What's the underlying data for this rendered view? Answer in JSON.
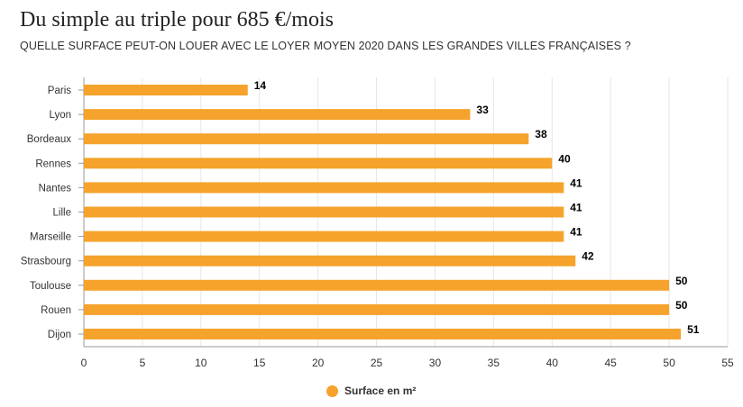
{
  "header": {
    "title": "Du simple au triple pour 685 €/mois",
    "subtitle": "QUELLE SURFACE PEUT-ON LOUER AVEC LE LOYER MOYEN 2020 DANS LES GRANDES VILLES FRANÇAISES ?"
  },
  "colors": {
    "bar": "#f5a32c",
    "grid": "#e6e6e6",
    "axis": "#999999",
    "label": "#333333",
    "value_label": "#000000"
  },
  "chart_data": {
    "type": "bar",
    "orientation": "horizontal",
    "categories": [
      "Paris",
      "Lyon",
      "Bordeaux",
      "Rennes",
      "Nantes",
      "Lille",
      "Marseille",
      "Strasbourg",
      "Toulouse",
      "Rouen",
      "Dijon"
    ],
    "series": [
      {
        "name": "Surface en m²",
        "values": [
          14,
          33,
          38,
          40,
          41,
          41,
          41,
          42,
          50,
          50,
          51
        ]
      }
    ],
    "xlim": [
      0,
      55
    ],
    "xticks": [
      "0",
      "5",
      "10",
      "15",
      "20",
      "25",
      "30",
      "35",
      "40",
      "45",
      "50",
      "55"
    ],
    "grid": true,
    "legend_position": "bottom",
    "data_labels": true
  },
  "legend": {
    "label": "Surface en m²"
  }
}
